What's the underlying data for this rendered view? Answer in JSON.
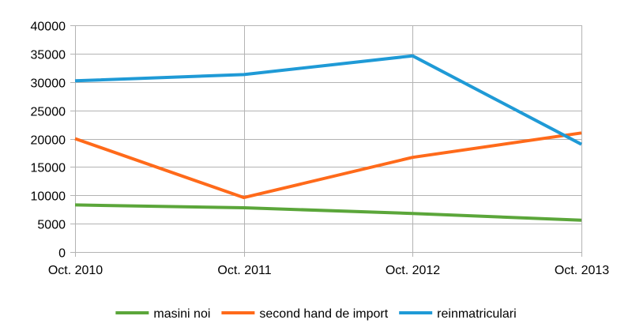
{
  "chart_data": {
    "type": "line",
    "title": "",
    "xlabel": "",
    "ylabel": "",
    "categories": [
      "Oct. 2010",
      "Oct. 2011",
      "Oct. 2012",
      "Oct. 2013"
    ],
    "ylim": [
      0,
      40000
    ],
    "yticks": [
      0,
      5000,
      10000,
      15000,
      20000,
      25000,
      30000,
      35000,
      40000
    ],
    "grid": true,
    "legend_position": "bottom",
    "series": [
      {
        "name": "masini noi",
        "color": "#5ba63a",
        "values": [
          8300,
          7800,
          6800,
          5600
        ]
      },
      {
        "name": "second hand de import",
        "color": "#ff6a1a",
        "values": [
          20000,
          9600,
          16700,
          21000
        ]
      },
      {
        "name": "reinmatriculari",
        "color": "#1f9ad6",
        "values": [
          30200,
          31300,
          34600,
          19000
        ]
      }
    ]
  }
}
